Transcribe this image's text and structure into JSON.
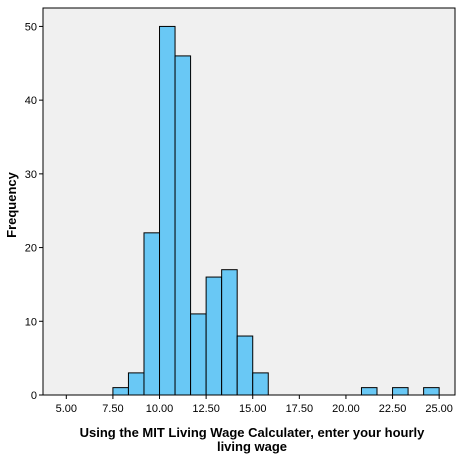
{
  "chart_data": {
    "type": "bar",
    "title": "",
    "xlabel_line1": "Using the MIT Living Wage Calculater, enter your hourly",
    "xlabel_line2": "living wage",
    "ylabel": "Frequency",
    "xlim": [
      3.75,
      25.85
    ],
    "ylim": [
      0,
      52.5
    ],
    "x_ticks": [
      5,
      7.5,
      10,
      12.5,
      15,
      17.5,
      20,
      22.5,
      25
    ],
    "x_tick_labels": [
      "5.00",
      "7.50",
      "10.00",
      "12.50",
      "15.00",
      "17.50",
      "20.00",
      "22.50",
      "25.00"
    ],
    "y_ticks": [
      0,
      10,
      20,
      30,
      40,
      50
    ],
    "y_tick_labels": [
      "0",
      "10",
      "20",
      "30",
      "40",
      "50"
    ],
    "bin_width": 0.833,
    "bins": [
      {
        "start": 7.5,
        "count": 1
      },
      {
        "start": 8.333,
        "count": 3
      },
      {
        "start": 9.167,
        "count": 22
      },
      {
        "start": 10.0,
        "count": 50
      },
      {
        "start": 10.833,
        "count": 46
      },
      {
        "start": 11.667,
        "count": 11
      },
      {
        "start": 12.5,
        "count": 16
      },
      {
        "start": 13.333,
        "count": 17
      },
      {
        "start": 14.167,
        "count": 8
      },
      {
        "start": 15.0,
        "count": 3
      },
      {
        "start": 20.833,
        "count": 1
      },
      {
        "start": 22.5,
        "count": 1
      },
      {
        "start": 24.167,
        "count": 1
      }
    ],
    "colors": {
      "bar_fill": "#69c8f5",
      "bar_stroke": "#000000",
      "plot_background": "#f0f0f0",
      "page_background": "#ffffff"
    },
    "grid": false,
    "legend": "none"
  }
}
